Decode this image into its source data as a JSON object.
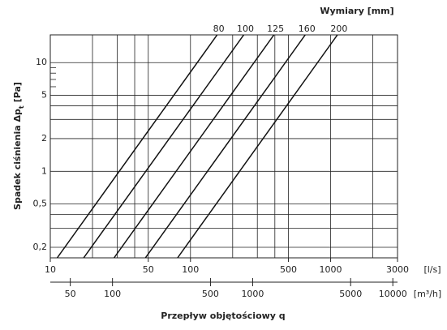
{
  "chart_data": {
    "type": "line",
    "legend_title": "Wymiary [mm]",
    "ylabel": [
      "Spadek ciśnienia Δp",
      "t",
      "[Pa]"
    ],
    "xlabel": "Przepływ objętościowy q",
    "xunit": "[l/s]",
    "x2unit": "[m³/h]",
    "xscale": "log",
    "yscale": "log",
    "xlim": [
      10,
      3000
    ],
    "ylim": [
      0.16,
      18
    ],
    "xticks": [
      10,
      50,
      100,
      500,
      1000,
      3000
    ],
    "xgrid": [
      10,
      20,
      30,
      40,
      50,
      100,
      200,
      300,
      400,
      500,
      1000,
      2000,
      3000
    ],
    "yticks": [
      {
        "value": 0.2,
        "label": "0,2"
      },
      {
        "value": 0.5,
        "label": "0,5"
      },
      1,
      2,
      5,
      10
    ],
    "ygrid": [
      0.2,
      0.3,
      0.4,
      0.5,
      1,
      2,
      3,
      4,
      5,
      10
    ],
    "yminor": [
      6,
      7,
      8,
      9
    ],
    "x2lim": [
      36,
      10800
    ],
    "x2ticks": [
      50,
      100,
      500,
      1000,
      5000,
      10000
    ],
    "color": "#111111",
    "series": [
      {
        "name": "80",
        "x": [
          11.2,
          155
        ],
        "values": [
          0.16,
          18
        ]
      },
      {
        "name": "100",
        "x": [
          17.3,
          240
        ],
        "values": [
          0.16,
          18
        ]
      },
      {
        "name": "125",
        "x": [
          28.5,
          394
        ],
        "values": [
          0.16,
          18
        ]
      },
      {
        "name": "160",
        "x": [
          47.7,
          659
        ],
        "values": [
          0.16,
          18
        ]
      },
      {
        "name": "200",
        "x": [
          80.9,
          1118
        ],
        "values": [
          0.16,
          18
        ]
      }
    ]
  }
}
